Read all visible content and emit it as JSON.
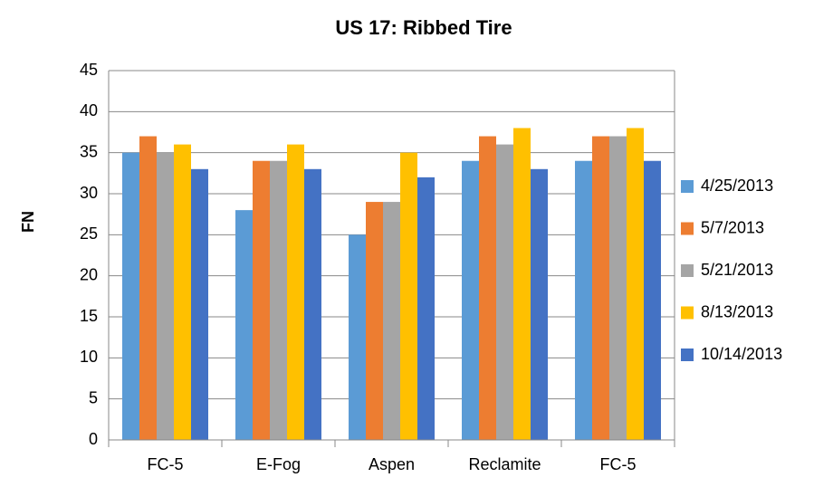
{
  "chart_data": {
    "type": "bar",
    "title": "US 17: Ribbed Tire",
    "y_label": "FN",
    "categories": [
      "FC-5",
      "E-Fog",
      "Aspen",
      "Reclamite",
      "FC-5"
    ],
    "series": [
      {
        "name": "4/25/2013",
        "color": "#5b9bd5",
        "values": [
          35,
          28,
          25,
          34,
          34
        ]
      },
      {
        "name": "5/7/2013",
        "color": "#ed7d31",
        "values": [
          37,
          34,
          29,
          37,
          37
        ]
      },
      {
        "name": "5/21/2013",
        "color": "#a5a5a5",
        "values": [
          35,
          34,
          29,
          36,
          37
        ]
      },
      {
        "name": "8/13/2013",
        "color": "#ffc000",
        "values": [
          36,
          36,
          35,
          38,
          38
        ]
      },
      {
        "name": "10/14/2013",
        "color": "#4472c4",
        "values": [
          33,
          33,
          32,
          33,
          34
        ]
      }
    ],
    "ylim": [
      0,
      45
    ],
    "yticks": [
      0,
      5,
      10,
      15,
      20,
      25,
      30,
      35,
      40,
      45
    ],
    "grid": true,
    "legend": "right"
  }
}
